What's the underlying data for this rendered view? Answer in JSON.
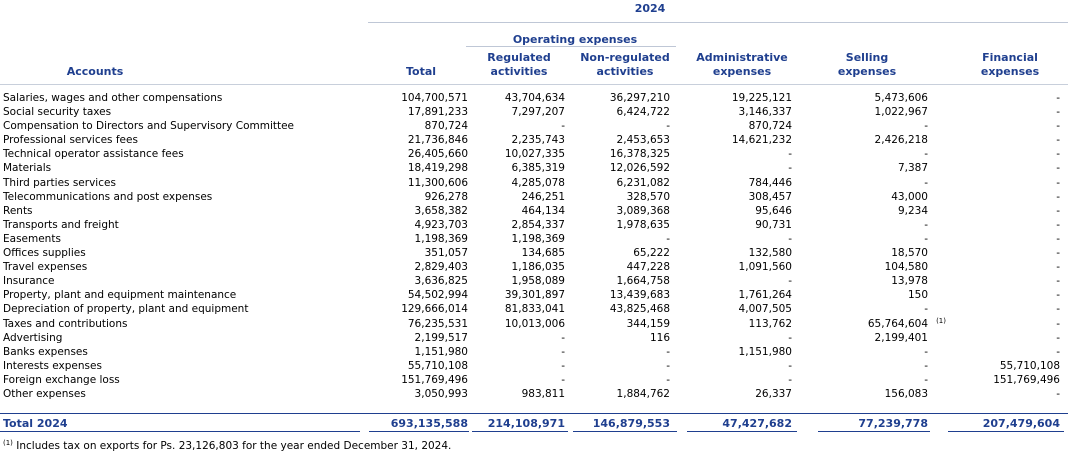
{
  "year": "2024",
  "headers": {
    "operating_expenses": "Operating expenses",
    "accounts": "Accounts",
    "total": "Total",
    "regulated": [
      "Regulated",
      "activities"
    ],
    "non_regulated": [
      "Non-regulated",
      "activities"
    ],
    "administrative": [
      "Administrative",
      "expenses"
    ],
    "selling": [
      "Selling",
      "expenses"
    ],
    "financial": [
      "Financial",
      "expenses"
    ]
  },
  "rows": [
    {
      "account": "Salaries, wages and other compensations",
      "total": "104,700,571",
      "regulated": "43,704,634",
      "non_regulated": "36,297,210",
      "administrative": "19,225,121",
      "selling": "5,473,606",
      "financial": "-"
    },
    {
      "account": "Social security taxes",
      "total": "17,891,233",
      "regulated": "7,297,207",
      "non_regulated": "6,424,722",
      "administrative": "3,146,337",
      "selling": "1,022,967",
      "financial": "-"
    },
    {
      "account": "Compensation to Directors and Supervisory Committee",
      "total": "870,724",
      "regulated": "-",
      "non_regulated": "-",
      "administrative": "870,724",
      "selling": "-",
      "financial": "-"
    },
    {
      "account": "Professional services fees",
      "total": "21,736,846",
      "regulated": "2,235,743",
      "non_regulated": "2,453,653",
      "administrative": "14,621,232",
      "selling": "2,426,218",
      "financial": "-"
    },
    {
      "account": "Technical operator assistance fees",
      "total": "26,405,660",
      "regulated": "10,027,335",
      "non_regulated": "16,378,325",
      "administrative": "-",
      "selling": "-",
      "financial": "-"
    },
    {
      "account": "Materials",
      "total": "18,419,298",
      "regulated": "6,385,319",
      "non_regulated": "12,026,592",
      "administrative": "-",
      "selling": "7,387",
      "financial": "-"
    },
    {
      "account": "Third parties services",
      "total": "11,300,606",
      "regulated": "4,285,078",
      "non_regulated": "6,231,082",
      "administrative": "784,446",
      "selling": "-",
      "financial": "-"
    },
    {
      "account": "Telecommunications and post expenses",
      "total": "926,278",
      "regulated": "246,251",
      "non_regulated": "328,570",
      "administrative": "308,457",
      "selling": "43,000",
      "financial": "-"
    },
    {
      "account": "Rents",
      "total": "3,658,382",
      "regulated": "464,134",
      "non_regulated": "3,089,368",
      "administrative": "95,646",
      "selling": "9,234",
      "financial": "-"
    },
    {
      "account": "Transports and freight",
      "total": "4,923,703",
      "regulated": "2,854,337",
      "non_regulated": "1,978,635",
      "administrative": "90,731",
      "selling": "-",
      "financial": "-"
    },
    {
      "account": "Easements",
      "total": "1,198,369",
      "regulated": "1,198,369",
      "non_regulated": "-",
      "administrative": "-",
      "selling": "-",
      "financial": "-"
    },
    {
      "account": "Offices supplies",
      "total": "351,057",
      "regulated": "134,685",
      "non_regulated": "65,222",
      "administrative": "132,580",
      "selling": "18,570",
      "financial": "-"
    },
    {
      "account": "Travel expenses",
      "total": "2,829,403",
      "regulated": "1,186,035",
      "non_regulated": "447,228",
      "administrative": "1,091,560",
      "selling": "104,580",
      "financial": "-"
    },
    {
      "account": "Insurance",
      "total": "3,636,825",
      "regulated": "1,958,089",
      "non_regulated": "1,664,758",
      "administrative": "-",
      "selling": "13,978",
      "financial": "-"
    },
    {
      "account": "Property, plant and equipment maintenance",
      "total": "54,502,994",
      "regulated": "39,301,897",
      "non_regulated": "13,439,683",
      "administrative": "1,761,264",
      "selling": "150",
      "financial": "-"
    },
    {
      "account": "Depreciation of property, plant and equipment",
      "total": "129,666,014",
      "regulated": "81,833,041",
      "non_regulated": "43,825,468",
      "administrative": "4,007,505",
      "selling": "-",
      "financial": "-"
    },
    {
      "account": "Taxes and contributions",
      "total": "76,235,531",
      "regulated": "10,013,006",
      "non_regulated": "344,159",
      "administrative": "113,762",
      "selling": "65,764,604",
      "footnote_ref": "(1)",
      "financial": "-"
    },
    {
      "account": "Advertising",
      "total": "2,199,517",
      "regulated": "-",
      "non_regulated": "116",
      "administrative": "-",
      "selling": "2,199,401",
      "financial": "-"
    },
    {
      "account": "Banks expenses",
      "total": "1,151,980",
      "regulated": "-",
      "non_regulated": "-",
      "administrative": "1,151,980",
      "selling": "-",
      "financial": "-"
    },
    {
      "account": "Interests expenses",
      "total": "55,710,108",
      "regulated": "-",
      "non_regulated": "-",
      "administrative": "-",
      "selling": "-",
      "financial": "55,710,108"
    },
    {
      "account": "Foreign exchange loss",
      "total": "151,769,496",
      "regulated": "-",
      "non_regulated": "-",
      "administrative": "-",
      "selling": "-",
      "financial": "151,769,496"
    },
    {
      "account": "Other expenses",
      "total": "3,050,993",
      "regulated": "983,811",
      "non_regulated": "1,884,762",
      "administrative": "26,337",
      "selling": "156,083",
      "financial": "-"
    }
  ],
  "total_row": {
    "label": "Total 2024",
    "total": "693,135,588",
    "regulated": "214,108,971",
    "non_regulated": "146,879,553",
    "administrative": "47,427,682",
    "selling": "77,239,778",
    "financial": "207,479,604"
  },
  "footnote": {
    "ref": "(1)",
    "text": " Includes tax on exports for Ps. 23,126,803 for the year ended December 31, 2024."
  }
}
